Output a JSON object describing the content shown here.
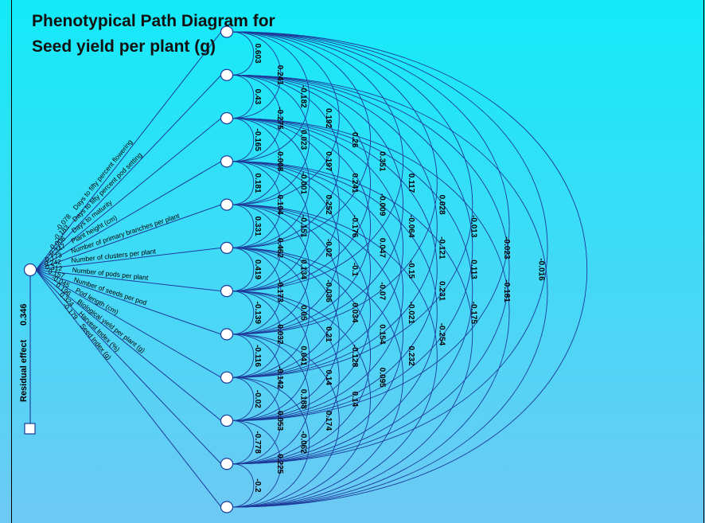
{
  "title": {
    "line1": "Phenotypical Path Diagram for",
    "line2": "Seed yield per plant (g)"
  },
  "residual": {
    "label": "Residual effect",
    "value": "0.346"
  },
  "colors": {
    "background_top": "#13ebf9",
    "background_bottom": "#6ec9f4",
    "lines": "#1e3a9a",
    "node_fill": "#ffffff",
    "text": "#000000"
  },
  "traits": [
    {
      "name": "Days to fifty percent flowering",
      "direct": "-0.078"
    },
    {
      "name": "Days to fifty percent pod setting",
      "direct": "-0.183"
    },
    {
      "name": "Days to maturity",
      "direct": "0.006"
    },
    {
      "name": "Plant height (cm)",
      "direct": "-0.347"
    },
    {
      "name": "Number of primary branches per plant",
      "direct": "0.173"
    },
    {
      "name": "Number of clusters per plant",
      "direct": "0.242"
    },
    {
      "name": "Number of pods per plant",
      "direct": "0.312"
    },
    {
      "name": "Number of seeds per pod",
      "direct": "0.157"
    },
    {
      "name": "Pod length (cm)",
      "direct": "-0.045"
    },
    {
      "name": "Biological yield per plant (g)",
      "direct": "0.196"
    },
    {
      "name": "Harvest Index (%)",
      "direct": "0.324"
    },
    {
      "name": "Seed Index (g)",
      "direct": "-0.179"
    }
  ],
  "correlations": [
    [
      "0.603",
      "0.43",
      "-0.165",
      "0.181",
      "0.331",
      "0.419",
      "-0.139",
      "-0.116",
      "-0.02",
      "-0.778",
      "-0.2"
    ],
    [
      "0.241",
      "-0.275",
      "0.008",
      "0.104",
      "0.462",
      "-0.173",
      "0.032",
      "-0.142",
      "0.053",
      "0.225"
    ],
    [
      "-0.182",
      "0.023",
      "-0.001",
      "-0.151",
      "0.134",
      "0.05",
      "0.041",
      "0.188",
      "-0.062"
    ],
    [
      "0.192",
      "0.197",
      "0.252",
      "-0.02",
      "-0.036",
      "0.21",
      "0.14",
      "0.174"
    ],
    [
      "0.26",
      "0.241",
      "-0.176",
      "-0.1",
      "0.034",
      "-0.128",
      "0.14"
    ],
    [
      "0.351",
      "-0.009",
      "0.047",
      "-0.07",
      "0.154",
      "0.095"
    ],
    [
      "0.117",
      "-0.064",
      "-0.15",
      "-0.021",
      "0.232"
    ],
    [
      "0.028",
      "-0.121",
      "0.231",
      "-0.254"
    ],
    [
      "-0.013",
      "0.113",
      "-0.175"
    ],
    [
      "-0.023",
      "-0.181"
    ],
    [
      "-0.016"
    ]
  ]
}
